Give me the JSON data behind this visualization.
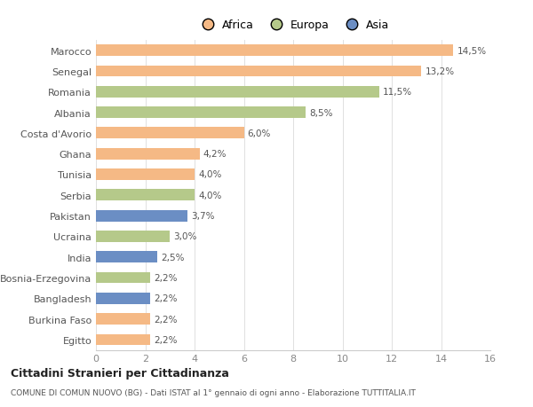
{
  "categories": [
    "Egitto",
    "Burkina Faso",
    "Bangladesh",
    "Bosnia-Erzegovina",
    "India",
    "Ucraina",
    "Pakistan",
    "Serbia",
    "Tunisia",
    "Ghana",
    "Costa d'Avorio",
    "Albania",
    "Romania",
    "Senegal",
    "Marocco"
  ],
  "values": [
    2.2,
    2.2,
    2.2,
    2.2,
    2.5,
    3.0,
    3.7,
    4.0,
    4.0,
    4.2,
    6.0,
    8.5,
    11.5,
    13.2,
    14.5
  ],
  "labels": [
    "2,2%",
    "2,2%",
    "2,2%",
    "2,2%",
    "2,5%",
    "3,0%",
    "3,7%",
    "4,0%",
    "4,0%",
    "4,2%",
    "6,0%",
    "8,5%",
    "11,5%",
    "13,2%",
    "14,5%"
  ],
  "continents": [
    "Africa",
    "Africa",
    "Asia",
    "Europa",
    "Asia",
    "Europa",
    "Asia",
    "Europa",
    "Africa",
    "Africa",
    "Africa",
    "Europa",
    "Europa",
    "Africa",
    "Africa"
  ],
  "colors": {
    "Africa": "#f5b985",
    "Europa": "#b5c98a",
    "Asia": "#6b8ec4"
  },
  "legend_labels": [
    "Africa",
    "Europa",
    "Asia"
  ],
  "legend_colors": [
    "#f5b985",
    "#b5c98a",
    "#6b8ec4"
  ],
  "title1": "Cittadini Stranieri per Cittadinanza",
  "title2": "COMUNE DI COMUN NUOVO (BG) - Dati ISTAT al 1° gennaio di ogni anno - Elaborazione TUTTITALIA.IT",
  "xlim": [
    0,
    16
  ],
  "xticks": [
    0,
    2,
    4,
    6,
    8,
    10,
    12,
    14,
    16
  ],
  "background_color": "#ffffff",
  "bar_height": 0.55
}
